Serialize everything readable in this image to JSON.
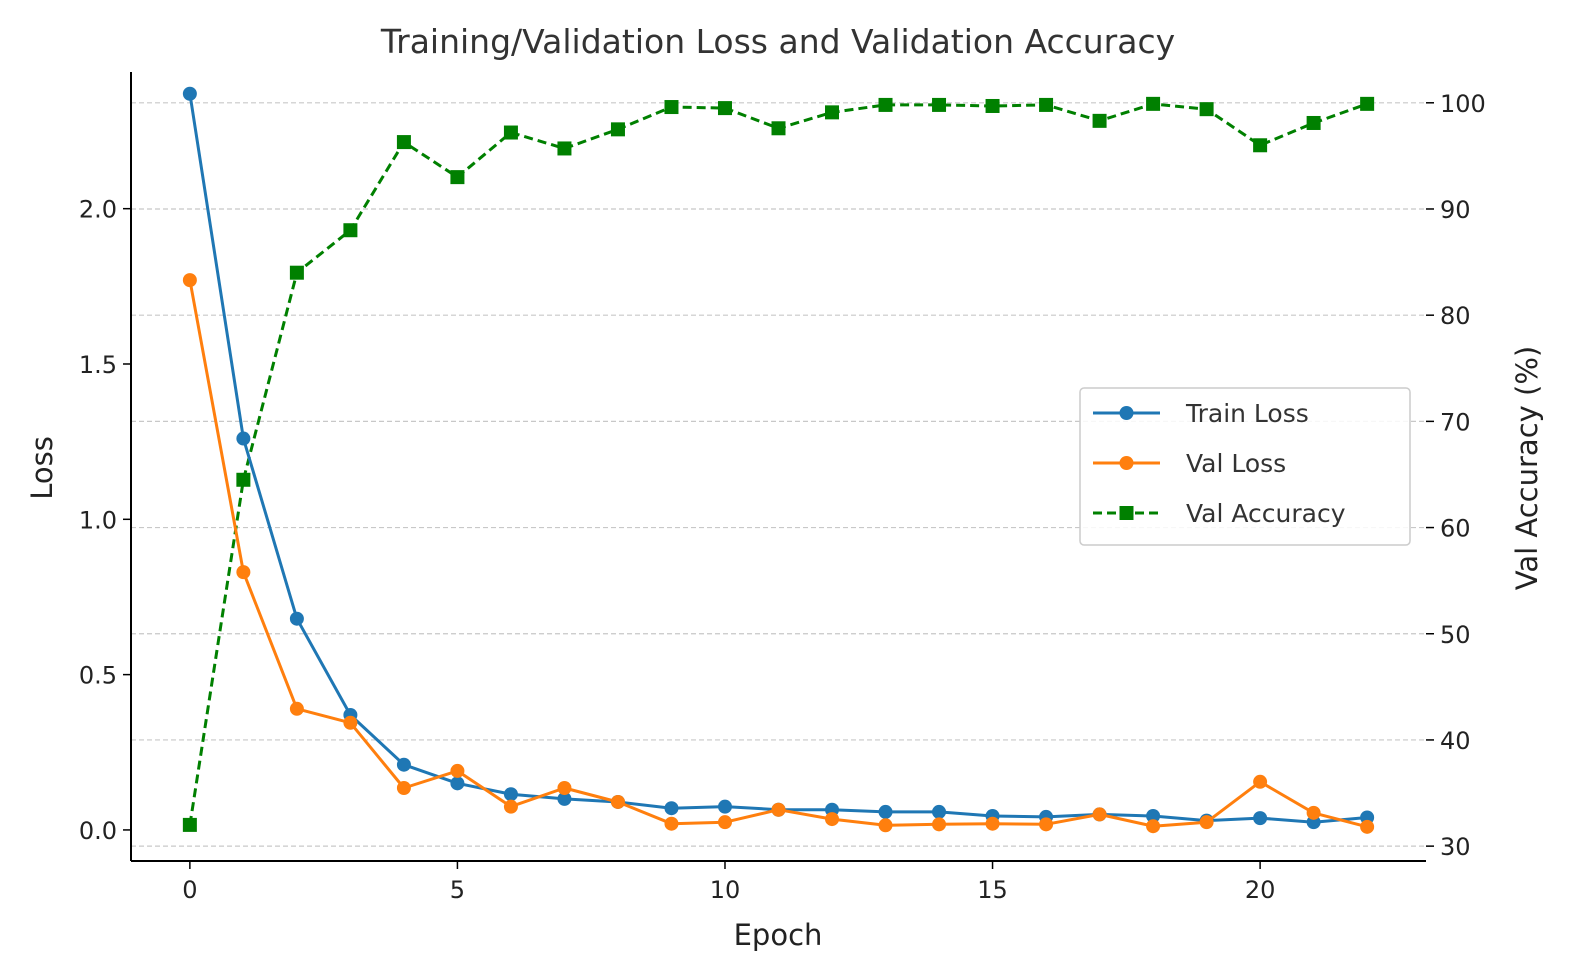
{
  "chart_data": {
    "type": "line",
    "title": "Training/Validation Loss and Validation Accuracy",
    "xlabel": "Epoch",
    "ylabel_left": "Loss",
    "ylabel_right": "Val Accuracy (%)",
    "x": [
      0,
      1,
      2,
      3,
      4,
      5,
      6,
      7,
      8,
      9,
      10,
      11,
      12,
      13,
      14,
      15,
      16,
      17,
      18,
      19,
      20,
      21,
      22
    ],
    "xlim": [
      -1.1,
      23.1
    ],
    "xticks": [
      0,
      5,
      10,
      15,
      20
    ],
    "ylim_left": [
      -0.1,
      2.44
    ],
    "yticks_left": [
      0.0,
      0.5,
      1.0,
      1.5,
      2.0
    ],
    "ylim_right": [
      28.6,
      102.9
    ],
    "yticks_right": [
      30,
      40,
      50,
      60,
      70,
      80,
      90,
      100
    ],
    "grid": "y-dashed",
    "legend_position": "center-right",
    "series": [
      {
        "name": "Train Loss",
        "axis": "left",
        "color": "#1f77b4",
        "marker": "circle",
        "linestyle": "solid",
        "values": [
          2.37,
          1.26,
          0.68,
          0.37,
          0.21,
          0.15,
          0.115,
          0.1,
          0.09,
          0.07,
          0.075,
          0.065,
          0.065,
          0.058,
          0.058,
          0.045,
          0.042,
          0.05,
          0.045,
          0.03,
          0.038,
          0.025,
          0.04
        ]
      },
      {
        "name": "Val Loss",
        "axis": "left",
        "color": "#ff7f0e",
        "marker": "circle",
        "linestyle": "solid",
        "values": [
          1.77,
          0.83,
          0.39,
          0.345,
          0.135,
          0.19,
          0.075,
          0.135,
          0.09,
          0.02,
          0.025,
          0.065,
          0.035,
          0.015,
          0.018,
          0.02,
          0.018,
          0.05,
          0.012,
          0.025,
          0.155,
          0.055,
          0.01
        ]
      },
      {
        "name": "Val Accuracy",
        "axis": "right",
        "color": "#008000",
        "marker": "square",
        "linestyle": "dashed",
        "values": [
          32.0,
          64.5,
          84.0,
          88.0,
          96.3,
          93.0,
          97.2,
          95.7,
          97.5,
          99.6,
          99.5,
          97.6,
          99.1,
          99.8,
          99.8,
          99.7,
          99.8,
          98.3,
          99.9,
          99.4,
          96.0,
          98.1,
          99.9
        ]
      }
    ]
  }
}
